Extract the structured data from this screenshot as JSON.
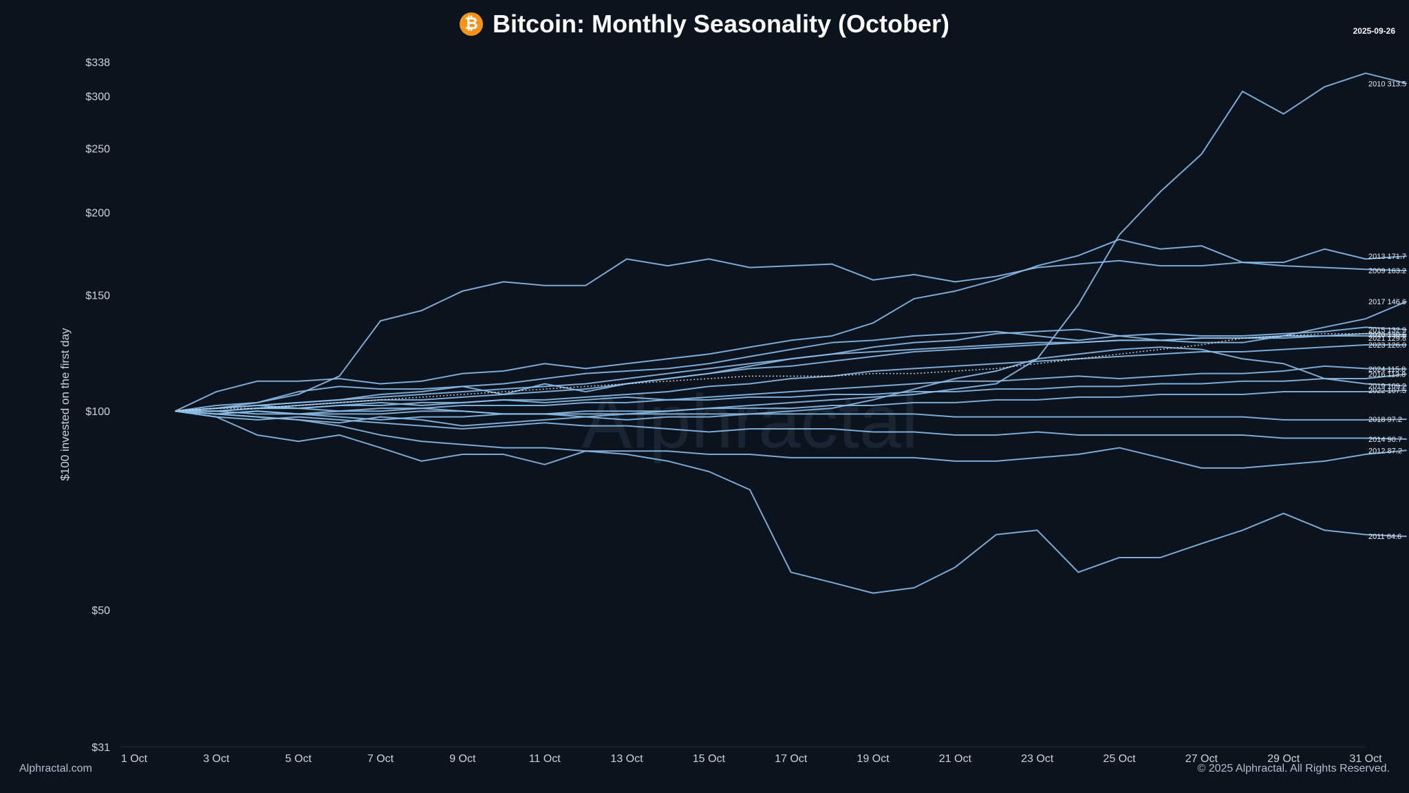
{
  "header": {
    "title": "Bitcoin: Monthly Seasonality (October)",
    "icon": "bitcoin-icon",
    "icon_glyph": "₿",
    "date": "2025-09-26"
  },
  "footer": {
    "left": "Alphractal.com",
    "right": "© 2025 Alphractal. All Rights Reserved."
  },
  "watermark": "Alphractal",
  "colors": {
    "background": "#0b131f",
    "line": "#8cbde6",
    "bitcoin": "#f7931a"
  },
  "chart_data": {
    "type": "line",
    "title": "Bitcoin: Monthly Seasonality (October)",
    "xlabel": "",
    "ylabel": "$100 invested on the first day",
    "y_scale": "log",
    "ylim": [
      31,
      338
    ],
    "yticks": [
      {
        "value": 338,
        "label": "$338"
      },
      {
        "value": 300,
        "label": "$300"
      },
      {
        "value": 250,
        "label": "$250"
      },
      {
        "value": 200,
        "label": "$200"
      },
      {
        "value": 150,
        "label": "$150"
      },
      {
        "value": 100,
        "label": "$100"
      },
      {
        "value": 50,
        "label": "$50"
      },
      {
        "value": 31,
        "label": "$31"
      }
    ],
    "x": [
      1,
      2,
      3,
      4,
      5,
      6,
      7,
      8,
      9,
      10,
      11,
      12,
      13,
      14,
      15,
      16,
      17,
      18,
      19,
      20,
      21,
      22,
      23,
      24,
      25,
      26,
      27,
      28,
      29,
      30,
      31
    ],
    "xticks": [
      {
        "day": 1,
        "label": "1 Oct"
      },
      {
        "day": 3,
        "label": "3 Oct"
      },
      {
        "day": 5,
        "label": "5 Oct"
      },
      {
        "day": 7,
        "label": "7 Oct"
      },
      {
        "day": 9,
        "label": "9 Oct"
      },
      {
        "day": 11,
        "label": "11 Oct"
      },
      {
        "day": 13,
        "label": "13 Oct"
      },
      {
        "day": 15,
        "label": "15 Oct"
      },
      {
        "day": 17,
        "label": "17 Oct"
      },
      {
        "day": 19,
        "label": "19 Oct"
      },
      {
        "day": 21,
        "label": "21 Oct"
      },
      {
        "day": 23,
        "label": "23 Oct"
      },
      {
        "day": 25,
        "label": "25 Oct"
      },
      {
        "day": 27,
        "label": "27 Oct"
      },
      {
        "day": 29,
        "label": "29 Oct"
      },
      {
        "day": 31,
        "label": "31 Oct"
      }
    ],
    "series": [
      {
        "name": "2010",
        "label": "2010 313.5",
        "start_day": 2,
        "values": [
          100,
          99,
          98,
          97,
          96,
          98,
          97,
          95,
          96,
          97,
          98,
          99,
          100,
          101,
          102,
          103,
          104,
          105,
          106,
          108,
          110,
          120,
          145,
          185,
          215,
          245,
          305,
          282,
          310,
          325,
          313.5
        ]
      },
      {
        "name": "2013",
        "label": "2013 171.7",
        "start_day": 2,
        "values": [
          100,
          107,
          111,
          111,
          112,
          110,
          111,
          114,
          115,
          118,
          116,
          118,
          120,
          122,
          125,
          128,
          130,
          136,
          148,
          152,
          158,
          166,
          172,
          182,
          176,
          178,
          168,
          168,
          176,
          170,
          171.7
        ]
      },
      {
        "name": "2009",
        "label": "2009 163.2",
        "start_day": 2,
        "values": [
          100,
          101,
          103,
          106,
          113,
          137,
          142,
          152,
          157,
          155,
          155,
          170,
          166,
          170,
          165,
          166,
          167,
          158,
          161,
          157,
          160,
          165,
          167,
          169,
          166,
          166,
          168,
          166,
          165,
          164,
          163.2
        ]
      },
      {
        "name": "2017",
        "label": "2017 146.6",
        "start_day": 2,
        "values": [
          100,
          102,
          103,
          107,
          109,
          108,
          108,
          109,
          106,
          110,
          107,
          110,
          112,
          114,
          117,
          120,
          122,
          125,
          127,
          128,
          131,
          132,
          133,
          130,
          128,
          127,
          127,
          130,
          134,
          138,
          146.6
        ]
      },
      {
        "name": "2015",
        "label": "2015 132.9",
        "start_day": 2,
        "values": [
          100,
          101,
          102,
          103,
          104,
          106,
          107,
          109,
          110,
          112,
          114,
          115,
          116,
          118,
          121,
          124,
          127,
          128,
          130,
          131,
          132,
          130,
          128,
          130,
          131,
          130,
          130,
          131,
          132,
          134,
          132.9
        ]
      },
      {
        "name": "2020",
        "label": "2020 130.6",
        "start_day": 2,
        "values": [
          100,
          100,
          101,
          102,
          103,
          104,
          104,
          105,
          106,
          107,
          108,
          110,
          112,
          114,
          116,
          117,
          119,
          121,
          123,
          124,
          125,
          126,
          127,
          128,
          128,
          129,
          129,
          130,
          130,
          131,
          130.6
        ]
      },
      {
        "name": "2021",
        "label": "2021 129.8",
        "start_day": 2,
        "values": [
          100,
          101,
          102,
          103,
          104,
          105,
          106,
          107,
          108,
          109,
          110,
          112,
          114,
          116,
          118,
          120,
          122,
          123,
          124,
          125,
          126,
          127,
          127,
          128,
          128,
          129,
          129,
          129,
          130,
          130,
          129.8
        ]
      },
      {
        "name": "2023",
        "label": "2023 126.0",
        "start_day": 2,
        "values": [
          100,
          100,
          101,
          101,
          102,
          102,
          103,
          103,
          104,
          104,
          105,
          106,
          107,
          109,
          110,
          112,
          113,
          115,
          116,
          117,
          118,
          119,
          120,
          121,
          122,
          123,
          123,
          124,
          125,
          126,
          126.0
        ]
      },
      {
        "name": "2024",
        "label": "2024 115.8",
        "start_day": 2,
        "values": [
          100,
          101,
          102,
          101,
          102,
          103,
          102,
          103,
          104,
          103,
          104,
          105,
          104,
          105,
          106,
          107,
          108,
          109,
          110,
          111,
          111,
          112,
          113,
          112,
          113,
          114,
          114,
          115,
          117,
          116,
          115.8
        ]
      },
      {
        "name": "2016",
        "label": "2016 113.8",
        "start_day": 2,
        "values": [
          100,
          100,
          101,
          101,
          100,
          101,
          101,
          102,
          102,
          102,
          103,
          103,
          104,
          104,
          105,
          105,
          106,
          106,
          107,
          107,
          108,
          108,
          109,
          109,
          110,
          110,
          111,
          111,
          112,
          112,
          113.8
        ]
      },
      {
        "name": "2019",
        "label": "2019 109.2",
        "start_day": 2,
        "values": [
          100,
          99,
          100,
          99,
          98,
          97,
          98,
          98,
          99,
          99,
          98,
          97,
          98,
          98,
          99,
          100,
          101,
          104,
          108,
          112,
          115,
          120,
          122,
          124,
          125,
          124,
          120,
          118,
          112,
          110,
          109.2
        ]
      },
      {
        "name": "2022",
        "label": "2022 107.5",
        "start_day": 2,
        "values": [
          100,
          100,
          99,
          99,
          100,
          100,
          101,
          100,
          99,
          99,
          100,
          100,
          100,
          101,
          101,
          101,
          102,
          102,
          103,
          103,
          104,
          104,
          105,
          105,
          106,
          106,
          106,
          107,
          107,
          107,
          107.5
        ]
      },
      {
        "name": "2018",
        "label": "2018 97.2",
        "start_day": 2,
        "values": [
          100,
          99,
          100,
          99,
          99,
          99,
          100,
          100,
          99,
          99,
          99,
          99,
          99,
          99,
          99,
          99,
          99,
          99,
          99,
          98,
          98,
          98,
          98,
          98,
          98,
          98,
          98,
          97,
          97,
          97,
          97.2
        ]
      },
      {
        "name": "2014",
        "label": "2014 90.7",
        "start_day": 2,
        "values": [
          100,
          98,
          97,
          98,
          97,
          96,
          95,
          94,
          95,
          96,
          95,
          95,
          94,
          93,
          94,
          94,
          94,
          93,
          93,
          92,
          92,
          93,
          92,
          92,
          92,
          92,
          92,
          91,
          91,
          91,
          90.7
        ]
      },
      {
        "name": "2012",
        "label": "2012 87.2",
        "start_day": 2,
        "values": [
          100,
          99,
          98,
          97,
          95,
          92,
          90,
          89,
          88,
          88,
          87,
          87,
          87,
          86,
          86,
          85,
          85,
          85,
          85,
          84,
          84,
          85,
          86,
          88,
          85,
          82,
          82,
          83,
          84,
          86,
          87.2
        ]
      },
      {
        "name": "2011",
        "label": "2011 64.6",
        "start_day": 2,
        "values": [
          100,
          98,
          92,
          90,
          92,
          88,
          84,
          86,
          86,
          83,
          87,
          86,
          84,
          81,
          76,
          57,
          55,
          53,
          54,
          58,
          65,
          66,
          57,
          60,
          60,
          63,
          66,
          70,
          66,
          65,
          64.6
        ]
      },
      {
        "name": "average",
        "label": "",
        "start_day": 2,
        "dotted": true,
        "values": [
          100,
          101,
          101,
          102,
          103,
          104,
          105,
          106,
          107,
          108,
          109,
          110,
          111,
          112,
          113,
          113,
          113,
          114,
          114,
          115,
          116,
          118,
          120,
          122,
          124,
          126,
          129,
          130,
          131,
          131,
          130.5
        ]
      }
    ]
  }
}
